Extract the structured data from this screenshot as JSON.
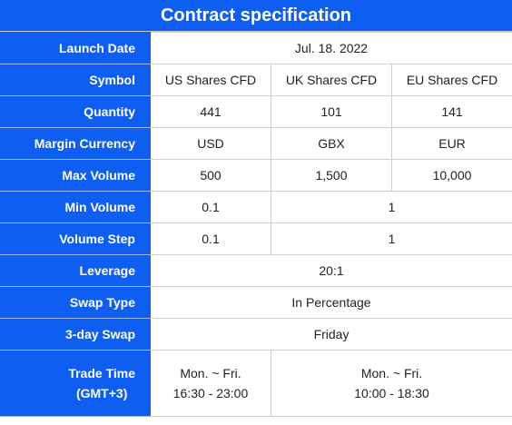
{
  "title": "Contract specification",
  "rows": {
    "launch_date": {
      "label": "Launch Date",
      "value": "Jul. 18. 2022"
    },
    "symbol": {
      "label": "Symbol",
      "values": [
        "US Shares CFD",
        "UK Shares CFD",
        "EU Shares CFD"
      ]
    },
    "quantity": {
      "label": "Quantity",
      "values": [
        "441",
        "101",
        "141"
      ]
    },
    "margin_currency": {
      "label": "Margin Currency",
      "values": [
        "USD",
        "GBX",
        "EUR"
      ]
    },
    "max_volume": {
      "label": "Max Volume",
      "values": [
        "500",
        "1,500",
        "10,000"
      ]
    },
    "min_volume": {
      "label": "Min Volume",
      "us": "0.1",
      "other": "1"
    },
    "volume_step": {
      "label": "Volume Step",
      "us": "0.1",
      "other": "1"
    },
    "leverage": {
      "label": "Leverage",
      "value": "20:1"
    },
    "swap_type": {
      "label": "Swap Type",
      "value": "In Percentage"
    },
    "three_day_swap": {
      "label": "3-day Swap",
      "value": "Friday"
    },
    "trade_time": {
      "label_line1": "Trade Time",
      "label_line2": "(GMT+3)",
      "us_days": "Mon. ~ Fri.",
      "us_hours": "16:30 - 23:00",
      "other_days": "Mon. ~ Fri.",
      "other_hours": "10:00 - 18:30"
    }
  },
  "colors": {
    "header_blue": "#0f5ef2",
    "header_text": "#ffffff",
    "grid": "#cfcfcf"
  }
}
